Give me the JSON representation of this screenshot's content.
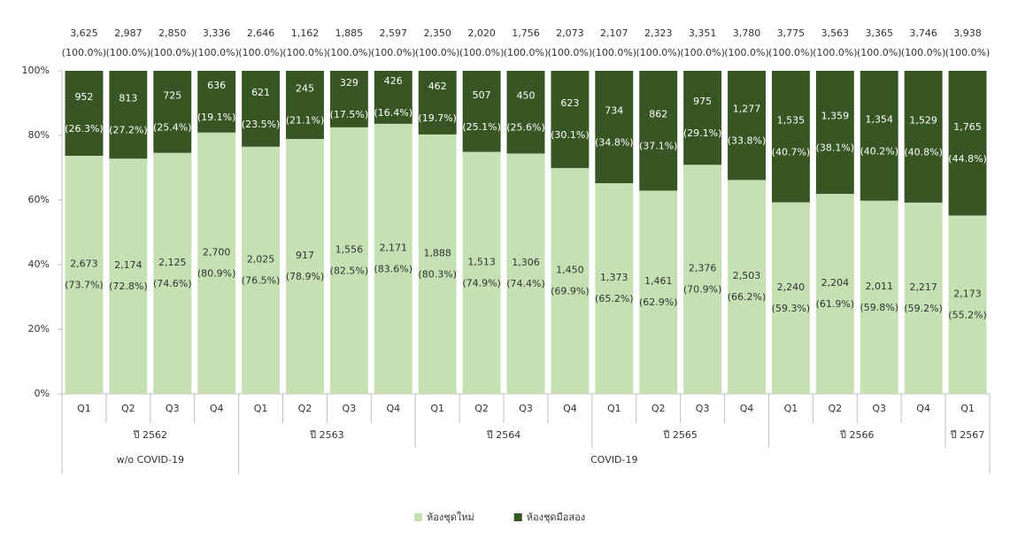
{
  "chart_data": {
    "type": "stacked_bar_percent",
    "eras": [
      {
        "label": "w/o COVID-19",
        "years": [
          {
            "label": "ปี 2562",
            "quarters": [
              "Q1",
              "Q2",
              "Q3",
              "Q4"
            ]
          }
        ]
      },
      {
        "label": "COVID-19",
        "years": [
          {
            "label": "ปี 2563",
            "quarters": [
              "Q1",
              "Q2",
              "Q3",
              "Q4"
            ]
          },
          {
            "label": "ปี 2564",
            "quarters": [
              "Q1",
              "Q2",
              "Q3",
              "Q4"
            ]
          },
          {
            "label": "ปี 2565",
            "quarters": [
              "Q1",
              "Q2",
              "Q3",
              "Q4"
            ]
          },
          {
            "label": "ปี 2566",
            "quarters": [
              "Q1",
              "Q2",
              "Q3",
              "Q4"
            ]
          },
          {
            "label": "ปี 2567",
            "quarters": [
              "Q1"
            ]
          }
        ]
      }
    ],
    "total_labels": [
      "3,625",
      "2,987",
      "2,850",
      "3,336",
      "2,646",
      "1,162",
      "1,885",
      "2,597",
      "2,350",
      "2,020",
      "1,756",
      "2,073",
      "2,107",
      "2,323",
      "3,351",
      "3,780",
      "3,775",
      "3,563",
      "3,365",
      "3,746",
      "3,938"
    ],
    "total_percent_labels": [
      "(100.0%)",
      "(100.0%)",
      "(100.0%)",
      "(100.0%)",
      "(100.0%)",
      "(100.0%)",
      "(100.0%)",
      "(100.0%)",
      "(100.0%)",
      "(100.0%)",
      "(100.0%)",
      "(100.0%)",
      "(100.0%)",
      "(100.0%)",
      "(100.0%)",
      "(100.0%)",
      "(100.0%)",
      "(100.0%)",
      "(100.0%)",
      "(100.0%)",
      "(100.0%)"
    ],
    "series": [
      {
        "name": "ห้องชุดใหม่",
        "color": "#c5e0b3",
        "label_color": "#333333",
        "values": [
          73.7,
          72.8,
          74.6,
          80.9,
          76.5,
          78.9,
          82.5,
          83.6,
          80.3,
          74.9,
          74.4,
          69.9,
          65.2,
          62.9,
          70.9,
          66.2,
          59.3,
          61.9,
          59.8,
          59.2,
          55.2
        ],
        "value_labels": [
          "(73.7%)",
          "(72.8%)",
          "(74.6%)",
          "(80.9%)",
          "(76.5%)",
          "(78.9%)",
          "(82.5%)",
          "(83.6%)",
          "(80.3%)",
          "(74.9%)",
          "(74.4%)",
          "(69.9%)",
          "(65.2%)",
          "(62.9%)",
          "(70.9%)",
          "(66.2%)",
          "(59.3%)",
          "(61.9%)",
          "(59.8%)",
          "(59.2%)",
          "(55.2%)"
        ],
        "count_labels": [
          "2,673",
          "2,174",
          "2,125",
          "2,700",
          "2,025",
          "917",
          "1,556",
          "2,171",
          "1,888",
          "1,513",
          "1,306",
          "1,450",
          "1,373",
          "1,461",
          "2,376",
          "2,503",
          "2,240",
          "2,204",
          "2,011",
          "2,217",
          "2,173"
        ]
      },
      {
        "name": "ห้องชุดมือสอง",
        "color": "#375623",
        "label_color": "#ffffff",
        "values": [
          26.3,
          27.2,
          25.4,
          19.1,
          23.5,
          21.1,
          17.5,
          16.4,
          19.7,
          25.1,
          25.6,
          30.1,
          34.8,
          37.1,
          29.1,
          33.8,
          40.7,
          38.1,
          40.2,
          40.8,
          44.8
        ],
        "value_labels": [
          "(26.3%)",
          "(27.2%)",
          "(25.4%)",
          "(19.1%)",
          "(23.5%)",
          "(21.1%)",
          "(17.5%)",
          "(16.4%)",
          "(19.7%)",
          "(25.1%)",
          "(25.6%)",
          "(30.1%)",
          "(34.8%)",
          "(37.1%)",
          "(29.1%)",
          "(33.8%)",
          "(40.7%)",
          "(38.1%)",
          "(40.2%)",
          "(40.8%)",
          "(44.8%)"
        ],
        "count_labels": [
          "952",
          "813",
          "725",
          "636",
          "621",
          "245",
          "329",
          "426",
          "462",
          "507",
          "450",
          "623",
          "734",
          "862",
          "975",
          "1,277",
          "1,535",
          "1,359",
          "1,354",
          "1,529",
          "1,765"
        ]
      }
    ],
    "ylim": [
      0,
      100
    ],
    "yticks": [
      {
        "value": 0,
        "label": "0%"
      },
      {
        "value": 20,
        "label": "20%"
      },
      {
        "value": 40,
        "label": "40%"
      },
      {
        "value": 60,
        "label": "60%"
      },
      {
        "value": 80,
        "label": "80%"
      },
      {
        "value": 100,
        "label": "100%"
      }
    ],
    "legend": "bottom"
  }
}
